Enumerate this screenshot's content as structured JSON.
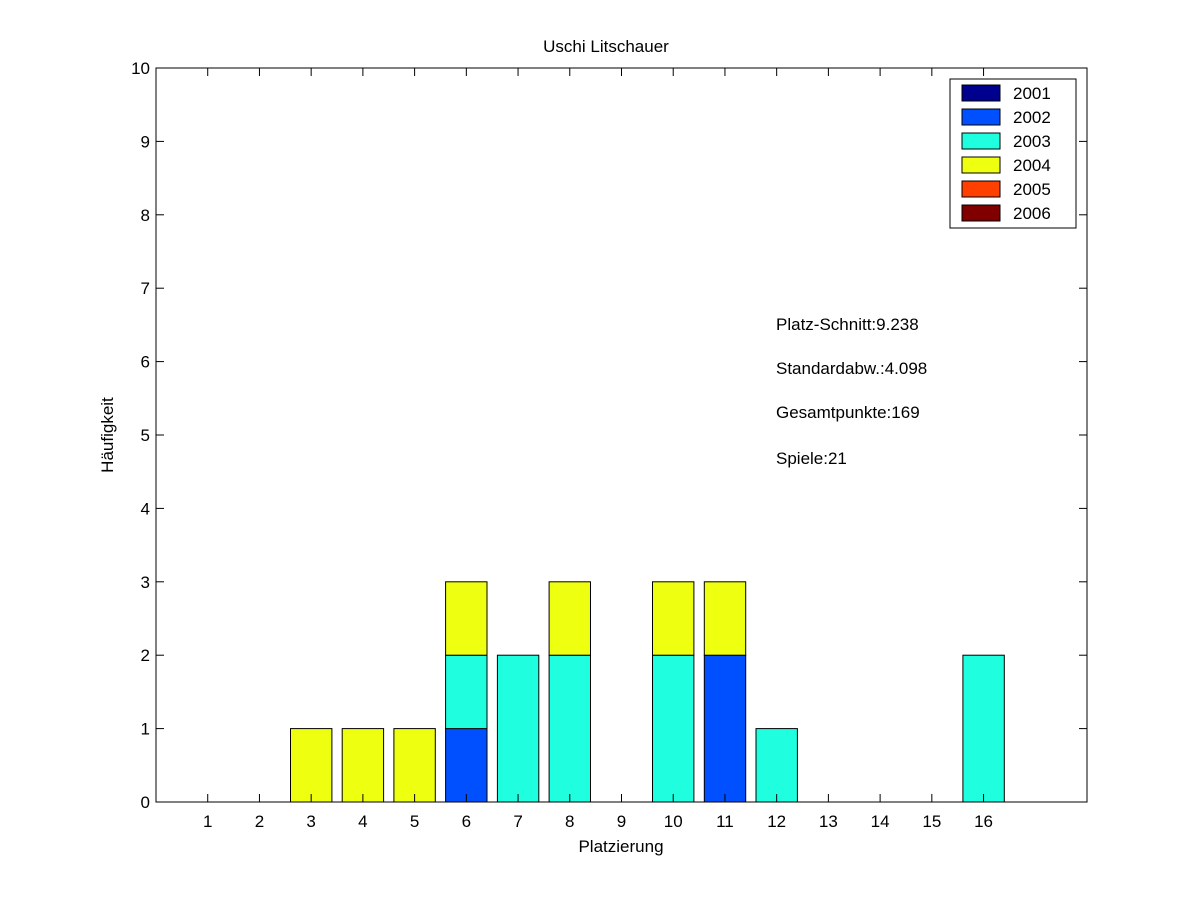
{
  "chart_data": {
    "type": "bar",
    "stacked": true,
    "title": "Uschi Litschauer",
    "xlabel": "Platzierung",
    "ylabel": "Häufigkeit",
    "ylim": [
      0,
      10
    ],
    "xlim": [
      0,
      18
    ],
    "yticks": [
      0,
      1,
      2,
      3,
      4,
      5,
      6,
      7,
      8,
      9,
      10
    ],
    "xticks": [
      1,
      2,
      3,
      4,
      5,
      6,
      7,
      8,
      9,
      10,
      11,
      12,
      13,
      14,
      15,
      16
    ],
    "categories": [
      1,
      2,
      3,
      4,
      5,
      6,
      7,
      8,
      9,
      10,
      11,
      12,
      13,
      14,
      15,
      16
    ],
    "series": [
      {
        "name": "2001",
        "color": "#00008f",
        "values": [
          0,
          0,
          0,
          0,
          0,
          0,
          0,
          0,
          0,
          0,
          0,
          0,
          0,
          0,
          0,
          0
        ]
      },
      {
        "name": "2002",
        "color": "#0050ff",
        "values": [
          0,
          0,
          0,
          0,
          0,
          1,
          0,
          0,
          0,
          0,
          2,
          0,
          0,
          0,
          0,
          0
        ]
      },
      {
        "name": "2003",
        "color": "#1fffdf",
        "values": [
          0,
          0,
          0,
          0,
          0,
          1,
          2,
          2,
          0,
          2,
          0,
          1,
          0,
          0,
          0,
          2
        ]
      },
      {
        "name": "2004",
        "color": "#efff10",
        "values": [
          0,
          0,
          1,
          1,
          1,
          1,
          0,
          1,
          0,
          1,
          1,
          0,
          0,
          0,
          0,
          0
        ]
      },
      {
        "name": "2005",
        "color": "#ff4000",
        "values": [
          0,
          0,
          0,
          0,
          0,
          0,
          0,
          0,
          0,
          0,
          0,
          0,
          0,
          0,
          0,
          0
        ]
      },
      {
        "name": "2006",
        "color": "#800000",
        "values": [
          0,
          0,
          0,
          0,
          0,
          0,
          0,
          0,
          0,
          0,
          0,
          0,
          0,
          0,
          0,
          0
        ]
      }
    ],
    "legend_position": "top-right",
    "grid": false,
    "annotations": [
      "Platz-Schnitt:9.238",
      "Standardabw.:4.098",
      "Gesamtpunkte:169",
      "Spiele:21"
    ]
  }
}
